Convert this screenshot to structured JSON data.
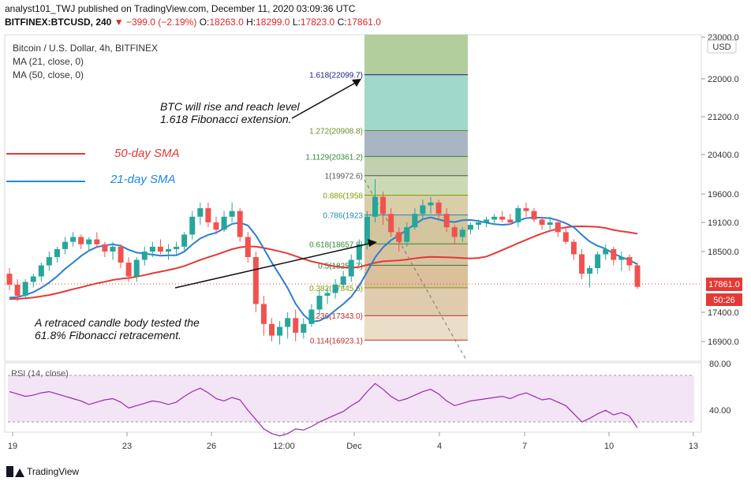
{
  "header": {
    "publisher": "analyst101_TWJ published on TradingView.com, December 11, 2020 03:09:36 UTC",
    "symbol": "BITFINEX:BTCUSD, 240",
    "change": "−399.0 (−2.19%)",
    "o_label": "O:",
    "o_value": "18263.0",
    "h_label": "H:",
    "h_value": "18299.0",
    "l_label": "L:",
    "l_value": "17823.0",
    "c_label": "C:",
    "c_value": "17861.0"
  },
  "legend": {
    "title": "Bitcoin / U.S. Dollar, 4h, BITFINEX",
    "ma21": "MA (21, close, 0)",
    "ma50": "MA (50, close, 0)"
  },
  "annotations": {
    "sma50": "50-day SMA",
    "sma21": "21-day SMA",
    "rise_line1": "BTC will rise and reach level",
    "rise_line2": "1.618 Fibonacci extension.",
    "retrace_line1": "A retraced candle body tested the",
    "retrace_line2": "61.8% Fibonacci retracement."
  },
  "price_scale": {
    "currency": "USD",
    "ticks": [
      "23000.0",
      "22000.0",
      "21200.0",
      "20400.0",
      "19600.0",
      "19100.0",
      "18500.0",
      "17400.0",
      "16900.0"
    ],
    "last_price": "17861.0",
    "countdown": "50:26"
  },
  "rsi": {
    "title": "RSI (14, close)",
    "ticks": [
      "80.00",
      "40.00"
    ]
  },
  "time_axis": {
    "labels": [
      "19",
      "23",
      "26",
      "12:00",
      "Dec",
      "4",
      "7",
      "10",
      "13"
    ]
  },
  "branding": {
    "name": "TradingView"
  },
  "colors": {
    "sma50": "#e53935",
    "sma21": "#2b7fd3",
    "bull": "#26a69a",
    "bear": "#ef5350",
    "rsi": "#9c27b0",
    "annotation_blue": "#1e88e5",
    "annotation_red": "#e53935"
  },
  "chart_data": {
    "type": "candlestick",
    "title": "Bitcoin / U.S. Dollar, 4h, BITFINEX",
    "ylim": [
      16700,
      23100
    ],
    "fibonacci": [
      {
        "label": "1.618(22099.7)",
        "level": 1.618,
        "price": 22099.7,
        "color": "#1a1a8c"
      },
      {
        "label": "1.272(20908.8)",
        "level": 1.272,
        "price": 20908.8,
        "color": "#6b8e23"
      },
      {
        "label": "1.1129(20361.2)",
        "level": 1.1129,
        "price": 20361.2,
        "color": "#2e8b2e"
      },
      {
        "label": "1(19972.6)",
        "level": 1,
        "price": 19972.6,
        "color": "#555555"
      },
      {
        "label": "0.886(1958",
        "level": 0.886,
        "price": 19580,
        "color": "#7fa000"
      },
      {
        "label": "0.786(1923",
        "level": 0.786,
        "price": 19230,
        "color": "#1e88b5"
      },
      {
        "label": "0.618(18657.8)",
        "level": 0.618,
        "price": 18657.8,
        "color": "#2e8b2e"
      },
      {
        "label": "0.5(18251.7)",
        "level": 0.5,
        "price": 18251.7,
        "color": "#2e7d32"
      },
      {
        "label": "0.382(17845.5)",
        "level": 0.382,
        "price": 17845.5,
        "color": "#7f9f00"
      },
      {
        "label": "0.236(17343.0)",
        "level": 0.236,
        "price": 17343.0,
        "color": "#c62828"
      },
      {
        "label": "0.114(16923.1)",
        "level": 0.114,
        "price": 16923.1,
        "color": "#c62828"
      }
    ],
    "candles": [
      [
        18100,
        18200,
        17800,
        17900
      ],
      [
        17900,
        18000,
        17600,
        17700
      ],
      [
        17700,
        18000,
        17650,
        17950
      ],
      [
        17950,
        18100,
        17850,
        18050
      ],
      [
        18050,
        18300,
        17950,
        18250
      ],
      [
        18250,
        18500,
        18150,
        18400
      ],
      [
        18400,
        18600,
        18300,
        18550
      ],
      [
        18550,
        18800,
        18450,
        18700
      ],
      [
        18700,
        18900,
        18600,
        18800
      ],
      [
        18800,
        18850,
        18550,
        18650
      ],
      [
        18650,
        18800,
        18500,
        18750
      ],
      [
        18750,
        18900,
        18600,
        18650
      ],
      [
        18650,
        18700,
        18400,
        18500
      ],
      [
        18500,
        18700,
        18350,
        18600
      ],
      [
        18600,
        18650,
        18200,
        18300
      ],
      [
        18300,
        18400,
        17950,
        18050
      ],
      [
        18050,
        18400,
        17950,
        18350
      ],
      [
        18350,
        18600,
        18250,
        18500
      ],
      [
        18500,
        18700,
        18400,
        18600
      ],
      [
        18600,
        18750,
        18450,
        18500
      ],
      [
        18500,
        18650,
        18350,
        18550
      ],
      [
        18550,
        18700,
        18450,
        18600
      ],
      [
        18600,
        18900,
        18500,
        18850
      ],
      [
        18850,
        19300,
        18750,
        19200
      ],
      [
        19200,
        19450,
        19050,
        19350
      ],
      [
        19350,
        19450,
        19000,
        19100
      ],
      [
        19100,
        19200,
        18850,
        18950
      ],
      [
        18950,
        19300,
        18900,
        19200
      ],
      [
        19200,
        19450,
        19100,
        19300
      ],
      [
        19300,
        19350,
        18700,
        18800
      ],
      [
        18800,
        18900,
        18300,
        18400
      ],
      [
        18400,
        18500,
        17400,
        17550
      ],
      [
        17550,
        17700,
        17000,
        17200
      ],
      [
        17200,
        17300,
        16900,
        17000
      ],
      [
        17000,
        17250,
        16850,
        17150
      ],
      [
        17150,
        17400,
        16950,
        17300
      ],
      [
        17300,
        17450,
        16900,
        17050
      ],
      [
        17050,
        17300,
        16950,
        17200
      ],
      [
        17200,
        17550,
        17150,
        17450
      ],
      [
        17450,
        17800,
        17350,
        17700
      ],
      [
        17700,
        17850,
        17550,
        17750
      ],
      [
        17750,
        18000,
        17650,
        17900
      ],
      [
        17900,
        18150,
        17850,
        18050
      ],
      [
        18050,
        18450,
        17950,
        18350
      ],
      [
        18350,
        18750,
        18250,
        18650
      ],
      [
        18650,
        19300,
        18550,
        19200
      ],
      [
        19200,
        19900,
        19100,
        19550
      ],
      [
        19550,
        19650,
        19050,
        19250
      ],
      [
        19250,
        19350,
        18800,
        18900
      ],
      [
        18900,
        19000,
        18500,
        18700
      ],
      [
        18700,
        19100,
        18600,
        19000
      ],
      [
        19000,
        19350,
        18950,
        19250
      ],
      [
        19250,
        19500,
        19150,
        19400
      ],
      [
        19400,
        19550,
        19250,
        19450
      ],
      [
        19450,
        19500,
        19150,
        19250
      ],
      [
        19250,
        19350,
        18900,
        19000
      ],
      [
        19000,
        19050,
        18650,
        18800
      ],
      [
        18800,
        19000,
        18700,
        18950
      ],
      [
        18950,
        19100,
        18850,
        19050
      ],
      [
        19050,
        19150,
        18950,
        19100
      ],
      [
        19100,
        19200,
        19000,
        19150
      ],
      [
        19150,
        19250,
        19050,
        19200
      ],
      [
        19200,
        19300,
        19100,
        19150
      ],
      [
        19150,
        19250,
        19050,
        19100
      ],
      [
        19100,
        19400,
        19000,
        19350
      ],
      [
        19350,
        19450,
        19200,
        19300
      ],
      [
        19300,
        19350,
        19100,
        19150
      ],
      [
        19150,
        19200,
        18950,
        19050
      ],
      [
        19050,
        19200,
        18950,
        19100
      ],
      [
        19100,
        19150,
        18800,
        18900
      ],
      [
        18900,
        19000,
        18650,
        18700
      ],
      [
        18700,
        18750,
        18350,
        18450
      ],
      [
        18450,
        18550,
        18000,
        18100
      ],
      [
        18100,
        18250,
        17850,
        18200
      ],
      [
        18200,
        18500,
        18100,
        18450
      ],
      [
        18450,
        18650,
        18350,
        18550
      ],
      [
        18550,
        18600,
        18250,
        18350
      ],
      [
        18350,
        18500,
        18150,
        18400
      ],
      [
        18400,
        18450,
        18150,
        18250
      ],
      [
        18250,
        18300,
        17823,
        17861
      ]
    ],
    "rsi_values": [
      66,
      64,
      62,
      63,
      65,
      66,
      64,
      62,
      60,
      58,
      55,
      57,
      59,
      60,
      57,
      52,
      54,
      56,
      58,
      57,
      55,
      57,
      62,
      66,
      69,
      65,
      60,
      58,
      61,
      59,
      50,
      42,
      34,
      30,
      28,
      30,
      34,
      33,
      36,
      40,
      43,
      46,
      49,
      54,
      58,
      66,
      73,
      68,
      62,
      58,
      60,
      63,
      66,
      68,
      64,
      58,
      54,
      56,
      58,
      59,
      60,
      61,
      62,
      60,
      63,
      65,
      62,
      59,
      60,
      57,
      54,
      47,
      40,
      43,
      47,
      50,
      46,
      48,
      45,
      35
    ]
  }
}
